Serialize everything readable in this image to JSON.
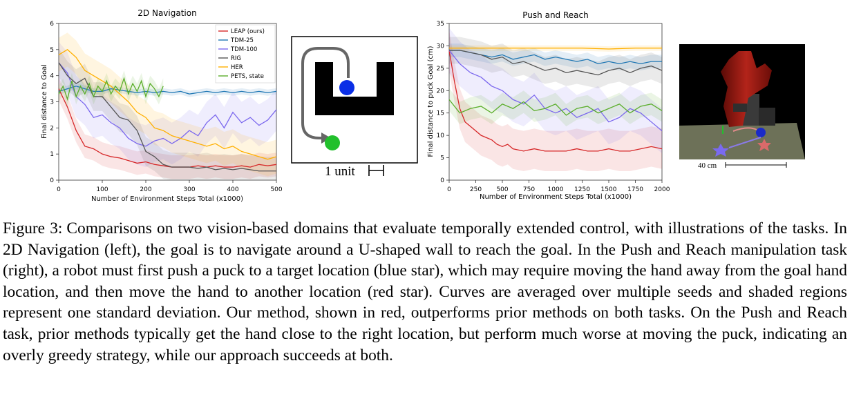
{
  "figure": {
    "label": "Figure 3:",
    "caption": "Comparisons on two vision-based domains that evaluate temporally extended control, with illustrations of the tasks. In 2D Navigation (left), the goal is to navigate around a U-shaped wall to reach the goal. In the Push and Reach manipulation task (right), a robot must first push a puck to a target location (blue star), which may require moving the hand away from the goal hand location, and then move the hand to another location (red star). Curves are averaged over multiple seeds and shaded regions represent one standard deviation. Our method, shown in red, outperforms prior methods on both tasks. On the Push and Reach task, prior methods typically get the hand close to the right location, but perform much worse at moving the puck, indicating an overly greedy strategy, while our approach succeeds at both."
  },
  "illustrations": {
    "nav_scale_label": "1 unit",
    "robot_scale_label": "40 cm"
  },
  "colors": {
    "LEAP (ours)": "#d62728",
    "TDM-25": "#1f77b4",
    "TDM-100": "#7b68ee",
    "RIG": "#555555",
    "HER": "#ffb000",
    "PETS, state": "#5aae2a"
  },
  "chart_data": [
    {
      "id": "nav",
      "type": "line",
      "title": "2D Navigation",
      "xlabel": "Number of Environment Steps Total (x1000)",
      "ylabel": "Final distance to Goal",
      "xlim": [
        0,
        500
      ],
      "ylim": [
        0,
        6
      ],
      "xticks": [
        0,
        100,
        200,
        300,
        400,
        500
      ],
      "yticks": [
        0,
        1,
        2,
        3,
        4,
        5,
        6
      ],
      "legend_position": "top-right",
      "series": [
        {
          "name": "LEAP (ours)",
          "x": [
            0,
            20,
            40,
            60,
            80,
            100,
            120,
            140,
            160,
            180,
            200,
            220,
            240,
            260,
            280,
            300,
            320,
            340,
            360,
            380,
            400,
            420,
            440,
            460,
            480,
            500
          ],
          "y": [
            3.5,
            2.8,
            1.9,
            1.3,
            1.2,
            1.0,
            0.9,
            0.85,
            0.75,
            0.65,
            0.7,
            0.6,
            0.55,
            0.5,
            0.5,
            0.5,
            0.55,
            0.5,
            0.55,
            0.5,
            0.5,
            0.55,
            0.5,
            0.6,
            0.55,
            0.6
          ],
          "std": 0.45
        },
        {
          "name": "TDM-25",
          "x": [
            0,
            20,
            40,
            60,
            80,
            100,
            120,
            140,
            160,
            180,
            200,
            220,
            240,
            260,
            280,
            300,
            320,
            340,
            360,
            380,
            400,
            420,
            440,
            460,
            480,
            500
          ],
          "y": [
            3.4,
            3.5,
            3.6,
            3.5,
            3.4,
            3.4,
            3.5,
            3.45,
            3.4,
            3.35,
            3.4,
            3.35,
            3.4,
            3.35,
            3.4,
            3.3,
            3.35,
            3.4,
            3.35,
            3.4,
            3.35,
            3.4,
            3.35,
            3.4,
            3.35,
            3.4
          ],
          "std": 0.12
        },
        {
          "name": "TDM-100",
          "x": [
            0,
            20,
            40,
            60,
            80,
            100,
            120,
            140,
            160,
            180,
            200,
            220,
            240,
            260,
            280,
            300,
            320,
            340,
            360,
            380,
            400,
            420,
            440,
            460,
            480,
            500
          ],
          "y": [
            4.5,
            4.1,
            3.2,
            2.9,
            2.4,
            2.5,
            2.2,
            2.0,
            1.6,
            1.4,
            1.3,
            1.5,
            1.6,
            1.4,
            1.6,
            1.9,
            1.7,
            2.2,
            2.5,
            2.0,
            2.6,
            2.2,
            2.4,
            2.1,
            2.3,
            2.7
          ],
          "std": 0.8
        },
        {
          "name": "RIG",
          "x": [
            0,
            20,
            40,
            60,
            80,
            100,
            120,
            140,
            160,
            180,
            200,
            220,
            240,
            260,
            280,
            300,
            320,
            340,
            360,
            380,
            400,
            420,
            440,
            460,
            480,
            500
          ],
          "y": [
            4.5,
            4.0,
            3.7,
            3.9,
            3.2,
            3.2,
            2.8,
            2.4,
            2.3,
            1.9,
            1.1,
            0.9,
            0.6,
            0.5,
            0.5,
            0.5,
            0.45,
            0.5,
            0.4,
            0.45,
            0.4,
            0.45,
            0.4,
            0.35,
            0.35,
            0.35
          ],
          "std": 0.55
        },
        {
          "name": "HER",
          "x": [
            0,
            20,
            40,
            60,
            80,
            100,
            120,
            140,
            160,
            180,
            200,
            220,
            240,
            260,
            280,
            300,
            320,
            340,
            360,
            380,
            400,
            420,
            440,
            460,
            480,
            500
          ],
          "y": [
            4.8,
            5.0,
            4.7,
            4.2,
            4.0,
            3.8,
            3.6,
            3.3,
            3.0,
            2.6,
            2.4,
            2.0,
            1.9,
            1.7,
            1.6,
            1.5,
            1.4,
            1.3,
            1.4,
            1.2,
            1.3,
            1.1,
            1.0,
            0.9,
            0.8,
            0.9
          ],
          "std": 0.65
        },
        {
          "name": "PETS, state",
          "x": [
            0,
            10,
            20,
            30,
            40,
            50,
            60,
            70,
            80,
            90,
            100,
            110,
            120,
            130,
            140,
            150,
            160,
            170,
            180,
            190,
            200,
            210,
            220,
            230,
            240
          ],
          "y": [
            3.3,
            3.6,
            3.1,
            3.8,
            3.2,
            3.6,
            3.3,
            3.7,
            3.2,
            3.6,
            3.4,
            3.8,
            3.3,
            3.6,
            3.4,
            3.9,
            3.3,
            3.7,
            3.4,
            3.8,
            3.2,
            3.7,
            3.5,
            3.2,
            3.6
          ],
          "std": 0.3
        }
      ]
    },
    {
      "id": "push",
      "type": "line",
      "title": "Push and Reach",
      "xlabel": "Number of Environment Steps Total (x1000)",
      "ylabel": "Final distance to puck Goal (cm)",
      "xlim": [
        0,
        2000
      ],
      "ylim": [
        0,
        35
      ],
      "xticks": [
        0,
        250,
        500,
        750,
        1000,
        1250,
        1500,
        1750,
        2000
      ],
      "yticks": [
        0,
        5,
        10,
        15,
        20,
        25,
        30,
        35
      ],
      "series": [
        {
          "name": "LEAP (ours)",
          "x": [
            0,
            50,
            100,
            150,
            200,
            250,
            300,
            350,
            400,
            450,
            500,
            550,
            600,
            700,
            800,
            900,
            1000,
            1100,
            1200,
            1300,
            1400,
            1500,
            1600,
            1700,
            1800,
            1900,
            2000
          ],
          "y": [
            29,
            22,
            16,
            13,
            12,
            11,
            10,
            9.5,
            9,
            8,
            7.5,
            8,
            7,
            6.5,
            7,
            6.5,
            6.5,
            6.5,
            7,
            6.5,
            6.5,
            7,
            6.5,
            6.5,
            7,
            7.5,
            7
          ],
          "std": 4.5
        },
        {
          "name": "TDM-25",
          "x": [
            0,
            100,
            200,
            300,
            400,
            500,
            600,
            700,
            800,
            900,
            1000,
            1100,
            1200,
            1300,
            1400,
            1500,
            1600,
            1700,
            1800,
            1900,
            2000
          ],
          "y": [
            29,
            29,
            28.5,
            28,
            27.5,
            28,
            27,
            27.5,
            28,
            27,
            27.5,
            27,
            26.5,
            27,
            26,
            26.5,
            26,
            26.5,
            26,
            26.5,
            26.5
          ],
          "std": 1.5
        },
        {
          "name": "TDM-100",
          "x": [
            0,
            100,
            200,
            300,
            400,
            500,
            600,
            700,
            800,
            900,
            1000,
            1100,
            1200,
            1300,
            1400,
            1500,
            1600,
            1700,
            1800,
            1900,
            2000
          ],
          "y": [
            29,
            26,
            24,
            23,
            21,
            20,
            18,
            17,
            19,
            16,
            15,
            16,
            14,
            15,
            16,
            13,
            14,
            16,
            15,
            13,
            11
          ],
          "std": 5.0
        },
        {
          "name": "RIG",
          "x": [
            0,
            100,
            200,
            300,
            400,
            500,
            600,
            700,
            800,
            900,
            1000,
            1100,
            1200,
            1300,
            1400,
            1500,
            1600,
            1700,
            1800,
            1900,
            2000
          ],
          "y": [
            29,
            29,
            28.5,
            28,
            27,
            27.5,
            26,
            26.5,
            25.5,
            24.5,
            25,
            24,
            24.5,
            24,
            23.5,
            24.5,
            25,
            24,
            25,
            25.5,
            24.5
          ],
          "std": 3.0
        },
        {
          "name": "HER",
          "x": [
            0,
            250,
            500,
            750,
            1000,
            1250,
            1500,
            1750,
            2000
          ],
          "y": [
            29.5,
            29.5,
            29.5,
            29.5,
            29.5,
            29.5,
            29.3,
            29.5,
            29.5
          ],
          "std": 0.6
        },
        {
          "name": "PETS, state",
          "x": [
            0,
            100,
            200,
            300,
            400,
            500,
            600,
            700,
            800,
            900,
            1000,
            1100,
            1200,
            1300,
            1400,
            1500,
            1600,
            1700,
            1800,
            1900,
            2000
          ],
          "y": [
            18,
            15,
            16,
            16.5,
            15,
            17,
            16,
            17.5,
            15.5,
            16,
            17,
            14.5,
            16,
            16.5,
            15,
            16,
            17,
            15,
            16.5,
            17,
            15.5
          ],
          "std": 2.5
        }
      ]
    }
  ]
}
